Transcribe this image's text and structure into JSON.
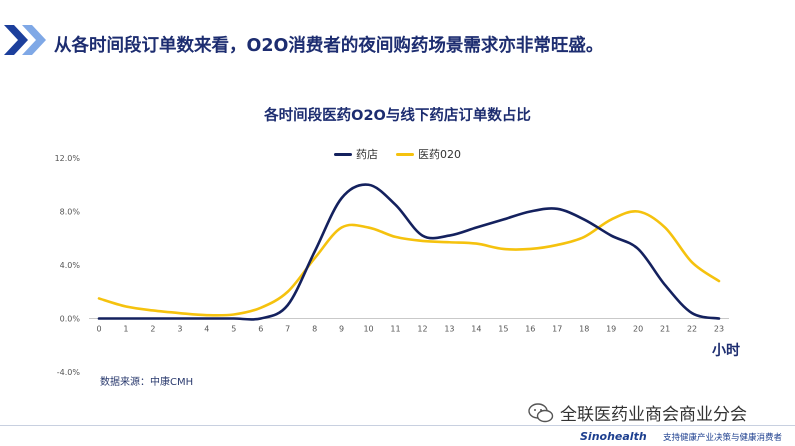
{
  "headline": "从各时间段订单数来看，O2O消费者的夜间购药场景需求亦非常旺盛。",
  "x_unit_label": "小时",
  "source_note": "数据来源：中康CMH",
  "watermark_text": "全联医药业商会商业分会",
  "footer": {
    "brand": "Sinohealth",
    "tagline": "支持健康产业决策与健康消费者"
  },
  "colors": {
    "accent": "#1d2d70",
    "pharmacy_line": "#14215e",
    "o2o_line": "#f5c20e",
    "chevron_dark": "#1c3f9c",
    "chevron_light": "#7fa8e6"
  },
  "chart_data": {
    "type": "line",
    "title": "各时间段医药O2O与线下药店订单数占比",
    "xlabel": "小时",
    "ylabel": "",
    "x": [
      0,
      1,
      2,
      3,
      4,
      5,
      6,
      7,
      8,
      9,
      10,
      11,
      12,
      13,
      14,
      15,
      16,
      17,
      18,
      19,
      20,
      21,
      22,
      23
    ],
    "ylim": [
      -4.0,
      12.0
    ],
    "yticks": [
      "-4.0%",
      "0.0%",
      "4.0%",
      "8.0%",
      "12.0%"
    ],
    "ytick_values": [
      -4,
      0,
      4,
      8,
      12
    ],
    "grid": false,
    "legend_position": "top-center",
    "series": [
      {
        "name": "药店",
        "color": "#14215e",
        "values": [
          0.0,
          0.0,
          0.0,
          0.0,
          0.0,
          0.0,
          0.0,
          1.0,
          5.0,
          9.0,
          10.0,
          8.5,
          6.2,
          6.2,
          6.8,
          7.4,
          8.0,
          8.2,
          7.4,
          6.2,
          5.2,
          2.5,
          0.4,
          0.0
        ]
      },
      {
        "name": "医药020",
        "color": "#f5c20e",
        "values": [
          1.5,
          0.9,
          0.6,
          0.4,
          0.25,
          0.3,
          0.8,
          2.0,
          4.5,
          6.8,
          6.8,
          6.1,
          5.8,
          5.7,
          5.6,
          5.2,
          5.2,
          5.5,
          6.1,
          7.4,
          8.0,
          6.8,
          4.2,
          2.8
        ]
      }
    ]
  }
}
